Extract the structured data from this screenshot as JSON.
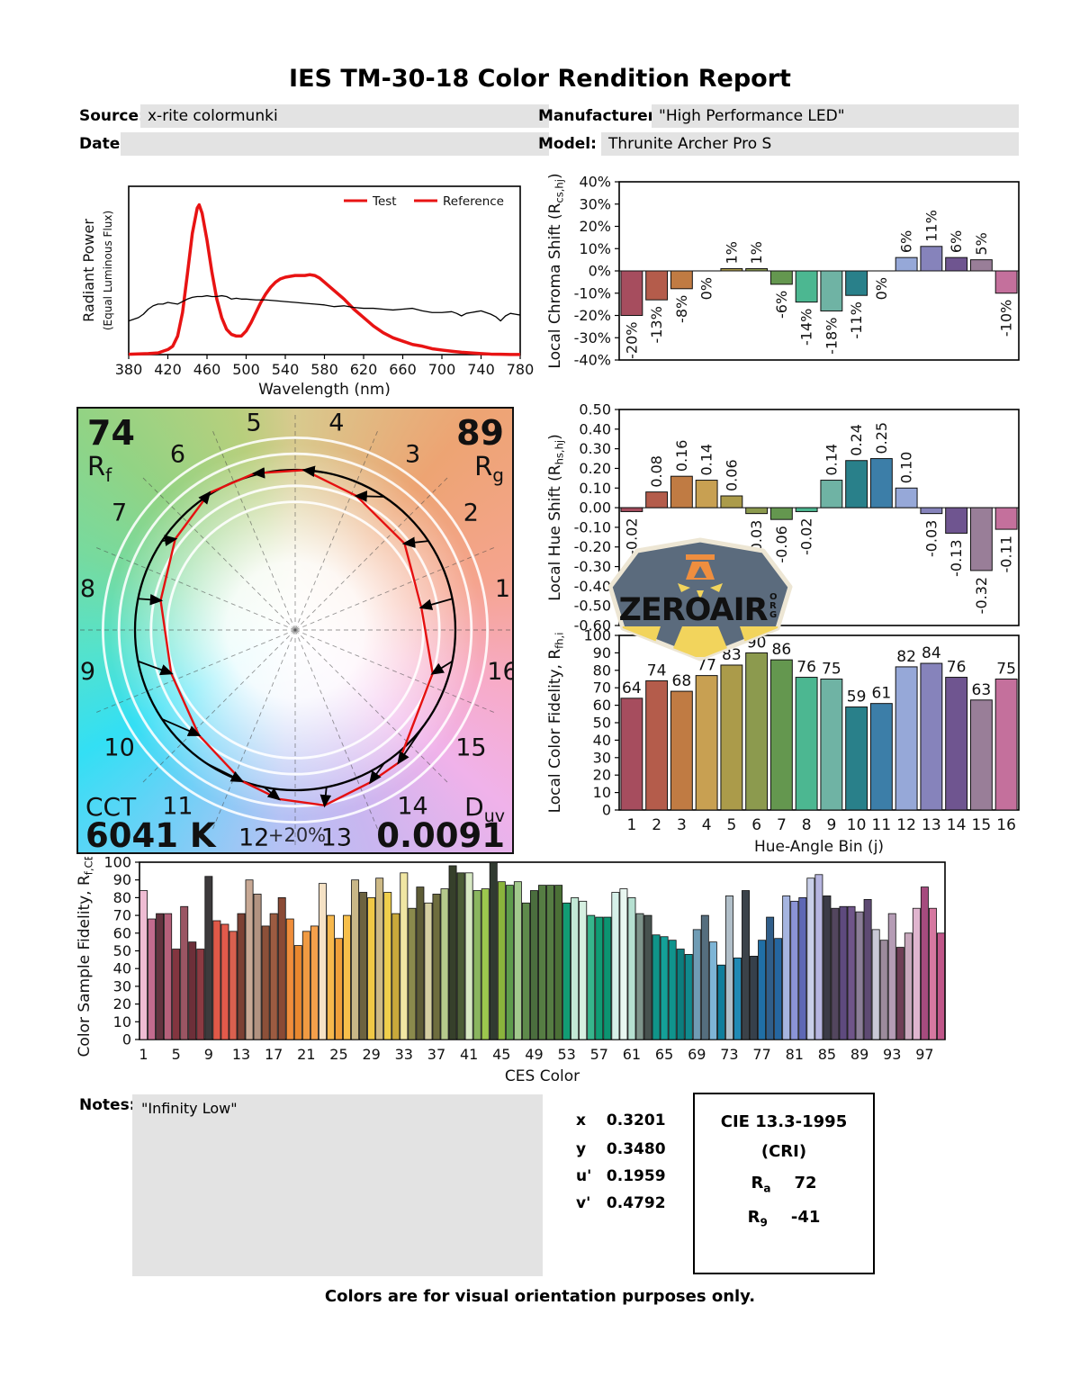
{
  "title": "IES TM-30-18 Color Rendition Report",
  "header": {
    "source_label": "Source:",
    "source_value": "x-rite colormunki",
    "date_label": "Date:",
    "date_value": "",
    "manufacturer_label": "Manufacturer:",
    "manufacturer_value": "\"High Performance LED\"",
    "model_label": "Model:",
    "model_value": "Thrunite Archer Pro S"
  },
  "bin_colors": [
    "#a64d5e",
    "#b45c4b",
    "#c07b43",
    "#c8a052",
    "#ab9b4a",
    "#8c9a4e",
    "#64974f",
    "#4cb791",
    "#6fb3a4",
    "#29808a",
    "#3c7ea8",
    "#96a8d8",
    "#8683bb",
    "#6f5590",
    "#997e98",
    "#c4709c"
  ],
  "chart_data": [
    {
      "id": "spd",
      "type": "line",
      "xlabel": "Wavelength (nm)",
      "ylabel_line1": "Radiant Power",
      "ylabel_line2": "(Equal Luminous Flux)",
      "x_ticks": [
        380,
        420,
        460,
        500,
        540,
        580,
        620,
        660,
        700,
        740,
        780
      ],
      "xlim": [
        380,
        780
      ],
      "legend": [
        {
          "label": "Test",
          "line_color": "#e81313",
          "text_color": "#e81313"
        },
        {
          "label": "Reference",
          "line_color": "#e81313",
          "text_color": "#000000"
        }
      ],
      "series": [
        {
          "name": "Test",
          "color": "#e81313",
          "width": 3.5,
          "points": [
            [
              380,
              0.002
            ],
            [
              400,
              0.006
            ],
            [
              410,
              0.01
            ],
            [
              420,
              0.03
            ],
            [
              425,
              0.05
            ],
            [
              430,
              0.11
            ],
            [
              435,
              0.25
            ],
            [
              440,
              0.48
            ],
            [
              445,
              0.72
            ],
            [
              450,
              0.87
            ],
            [
              452,
              0.89
            ],
            [
              455,
              0.84
            ],
            [
              460,
              0.68
            ],
            [
              465,
              0.49
            ],
            [
              470,
              0.33
            ],
            [
              475,
              0.22
            ],
            [
              480,
              0.15
            ],
            [
              485,
              0.12
            ],
            [
              490,
              0.11
            ],
            [
              495,
              0.11
            ],
            [
              500,
              0.14
            ],
            [
              505,
              0.19
            ],
            [
              510,
              0.25
            ],
            [
              515,
              0.31
            ],
            [
              520,
              0.36
            ],
            [
              525,
              0.4
            ],
            [
              530,
              0.43
            ],
            [
              535,
              0.45
            ],
            [
              540,
              0.46
            ],
            [
              550,
              0.47
            ],
            [
              560,
              0.47
            ],
            [
              565,
              0.475
            ],
            [
              570,
              0.47
            ],
            [
              575,
              0.455
            ],
            [
              580,
              0.43
            ],
            [
              590,
              0.38
            ],
            [
              600,
              0.33
            ],
            [
              610,
              0.27
            ],
            [
              620,
              0.22
            ],
            [
              630,
              0.17
            ],
            [
              640,
              0.13
            ],
            [
              650,
              0.1
            ],
            [
              660,
              0.08
            ],
            [
              670,
              0.06
            ],
            [
              680,
              0.05
            ],
            [
              690,
              0.035
            ],
            [
              700,
              0.027
            ],
            [
              710,
              0.02
            ],
            [
              720,
              0.014
            ],
            [
              730,
              0.01
            ],
            [
              740,
              0.006
            ],
            [
              750,
              0.003
            ],
            [
              760,
              0.002
            ],
            [
              770,
              0.001
            ],
            [
              780,
              0.001
            ]
          ]
        },
        {
          "name": "Reference",
          "color": "#000000",
          "width": 1.3,
          "points": [
            [
              380,
              0.2
            ],
            [
              385,
              0.21
            ],
            [
              390,
              0.22
            ],
            [
              395,
              0.24
            ],
            [
              400,
              0.27
            ],
            [
              405,
              0.29
            ],
            [
              410,
              0.3
            ],
            [
              415,
              0.3
            ],
            [
              420,
              0.31
            ],
            [
              425,
              0.305
            ],
            [
              430,
              0.3
            ],
            [
              435,
              0.315
            ],
            [
              440,
              0.33
            ],
            [
              445,
              0.34
            ],
            [
              450,
              0.345
            ],
            [
              455,
              0.345
            ],
            [
              460,
              0.35
            ],
            [
              465,
              0.345
            ],
            [
              470,
              0.345
            ],
            [
              475,
              0.35
            ],
            [
              480,
              0.345
            ],
            [
              485,
              0.33
            ],
            [
              490,
              0.335
            ],
            [
              495,
              0.33
            ],
            [
              500,
              0.33
            ],
            [
              510,
              0.325
            ],
            [
              520,
              0.325
            ],
            [
              530,
              0.32
            ],
            [
              540,
              0.315
            ],
            [
              550,
              0.31
            ],
            [
              560,
              0.305
            ],
            [
              570,
              0.3
            ],
            [
              580,
              0.295
            ],
            [
              590,
              0.285
            ],
            [
              600,
              0.29
            ],
            [
              610,
              0.28
            ],
            [
              620,
              0.275
            ],
            [
              630,
              0.275
            ],
            [
              640,
              0.27
            ],
            [
              650,
              0.265
            ],
            [
              660,
              0.27
            ],
            [
              670,
              0.275
            ],
            [
              680,
              0.26
            ],
            [
              690,
              0.25
            ],
            [
              700,
              0.25
            ],
            [
              710,
              0.255
            ],
            [
              715,
              0.245
            ],
            [
              720,
              0.23
            ],
            [
              725,
              0.245
            ],
            [
              730,
              0.25
            ],
            [
              735,
              0.255
            ],
            [
              740,
              0.26
            ],
            [
              745,
              0.25
            ],
            [
              750,
              0.24
            ],
            [
              755,
              0.225
            ],
            [
              760,
              0.2
            ],
            [
              765,
              0.23
            ],
            [
              770,
              0.245
            ],
            [
              775,
              0.24
            ],
            [
              780,
              0.235
            ]
          ]
        }
      ]
    },
    {
      "id": "chroma_shift",
      "type": "bar",
      "ylabel": {
        "pre": "Local Chroma Shift (R",
        "sub": "cs,hj",
        "post": ")"
      },
      "ylim": [
        -40,
        40
      ],
      "ytick_step": 10,
      "ytick_suffix": "%",
      "categories": [
        1,
        2,
        3,
        4,
        5,
        6,
        7,
        8,
        9,
        10,
        11,
        12,
        13,
        14,
        15,
        16
      ],
      "values": [
        -20,
        -13,
        -8,
        0,
        1,
        1,
        -6,
        -14,
        -18,
        -11,
        0,
        6,
        11,
        6,
        5,
        -10
      ],
      "labels": [
        "-20%",
        "-13%",
        "-8%",
        "0%",
        "1%",
        "1%",
        "-6%",
        "-14%",
        "-18%",
        "-11%",
        "0%",
        "6%",
        "11%",
        "6%",
        "5%",
        "-10%"
      ]
    },
    {
      "id": "hue_shift",
      "type": "bar",
      "ylabel": {
        "pre": "Local Hue Shift (R",
        "sub": "hs,hj",
        "post": ")"
      },
      "ylim": [
        -0.6,
        0.5
      ],
      "ytick_step": 0.1,
      "categories": [
        1,
        2,
        3,
        4,
        5,
        6,
        7,
        8,
        9,
        10,
        11,
        12,
        13,
        14,
        15,
        16
      ],
      "values": [
        -0.02,
        0.08,
        0.16,
        0.14,
        0.06,
        -0.03,
        -0.06,
        -0.02,
        0.14,
        0.24,
        0.25,
        0.1,
        -0.03,
        -0.13,
        -0.32,
        -0.11
      ],
      "labels": [
        "-0.02",
        "0.08",
        "0.16",
        "0.14",
        "0.06",
        "-0.03",
        "-0.06",
        "-0.02",
        "0.14",
        "0.24",
        "0.25",
        "0.10",
        "-0.03",
        "-0.13",
        "-0.32",
        "-0.11"
      ]
    },
    {
      "id": "local_fidelity",
      "type": "bar",
      "ylabel": {
        "pre": "Local Color Fidelity, R",
        "sub": "fh,i",
        "post": ""
      },
      "xlabel": "Hue-Angle Bin (j)",
      "ylim": [
        0,
        100
      ],
      "ytick_step": 10,
      "categories": [
        1,
        2,
        3,
        4,
        5,
        6,
        7,
        8,
        9,
        10,
        11,
        12,
        13,
        14,
        15,
        16
      ],
      "values": [
        64,
        74,
        68,
        77,
        83,
        90,
        86,
        76,
        75,
        59,
        61,
        82,
        84,
        76,
        63,
        75
      ]
    },
    {
      "id": "ces",
      "type": "bar",
      "ylabel": {
        "pre": "Color Sample Fidelity, R",
        "sub": "f,CESi",
        "post": ""
      },
      "xlabel": "CES Color",
      "ylim": [
        0,
        100
      ],
      "ytick_step": 10,
      "xtick_every": 4,
      "values": [
        84,
        68,
        71,
        71,
        51,
        75,
        55,
        51,
        92,
        67,
        65,
        61,
        71,
        90,
        82,
        64,
        71,
        80,
        68,
        53,
        61,
        64,
        88,
        70,
        57,
        70,
        90,
        83,
        80,
        91,
        83,
        71,
        94,
        74,
        86,
        77,
        82,
        85,
        98,
        94,
        94,
        84,
        85,
        100,
        89,
        87,
        89,
        77,
        84,
        87,
        87,
        87,
        77,
        80,
        78,
        70,
        69,
        69,
        83,
        85,
        80,
        71,
        70,
        59,
        58,
        56,
        51,
        48,
        62,
        70,
        55,
        42,
        81,
        46,
        84,
        47,
        56,
        69,
        57,
        81,
        78,
        80,
        91,
        93,
        81,
        74,
        75,
        75,
        72,
        79,
        62,
        56,
        71,
        52,
        60,
        74,
        86,
        74,
        60
      ],
      "colors": [
        "#efbcd3",
        "#c26b8e",
        "#63333f",
        "#b5607a",
        "#83353f",
        "#9a5563",
        "#6d2f39",
        "#8c3a42",
        "#3d3a3c",
        "#e05948",
        "#e25a4b",
        "#d9604f",
        "#7c4134",
        "#c8a995",
        "#b29381",
        "#8c5039",
        "#9c5b41",
        "#8a4a35",
        "#ef8d3b",
        "#e8872f",
        "#f09a42",
        "#f5a04b",
        "#f5e2c5",
        "#f7b84c",
        "#ef9f3a",
        "#f7bf4a",
        "#c9b787",
        "#6d6340",
        "#f0c846",
        "#cdb985",
        "#f0cf4c",
        "#c8a83b",
        "#f0e6a3",
        "#8a8a4c",
        "#5d5c36",
        "#d5cfa2",
        "#6e6d3e",
        "#b5c98c",
        "#36402b",
        "#4b5d36",
        "#d7e9c3",
        "#8ab55f",
        "#9cc74e",
        "#313b31",
        "#8ab43c",
        "#5e9c4c",
        "#a2c98c",
        "#5e8a4b",
        "#4b6e3e",
        "#567d43",
        "#567d43",
        "#4b7036",
        "#129c74",
        "#c2e8d6",
        "#d6f0e1",
        "#37b58c",
        "#109c74",
        "#0c9471",
        "#d6f0e9",
        "#e9f7f1",
        "#b6e0d1",
        "#7e948b",
        "#47524f",
        "#109489",
        "#14a098",
        "#10948d",
        "#0c7e7e",
        "#108a8d",
        "#6f9cb5",
        "#556e7e",
        "#7eb5d6",
        "#107e9c",
        "#b1bfc9",
        "#208ab5",
        "#3b4249",
        "#36404b",
        "#206fa6",
        "#305e8a",
        "#2566a0",
        "#a6b5e0",
        "#8b94d6",
        "#5e68b5",
        "#c9cfe9",
        "#b6b5e0",
        "#3b3b47",
        "#53465e",
        "#5e4a7e",
        "#6f5589",
        "#8b7e97",
        "#5e4a73",
        "#c9c9d6",
        "#9c8b9c",
        "#b59cb5",
        "#6f3e56",
        "#c9a8bd",
        "#e0b5cf",
        "#a64b7e",
        "#d678a0",
        "#c05689"
      ]
    }
  ],
  "cvg": {
    "rf_value": "74",
    "rf_label": "R",
    "rf_sub": "f",
    "rg_value": "89",
    "rg_label": "R",
    "rg_sub": "g",
    "cct_label": "CCT",
    "cct_value": "6041 K",
    "duv_label": "D",
    "duv_sub": "uv",
    "duv_value": "0.0091",
    "ring_label": "+20%",
    "bins": [
      "1",
      "2",
      "3",
      "4",
      "5",
      "6",
      "7",
      "8",
      "9",
      "10",
      "11",
      "12",
      "13",
      "14",
      "15",
      "16"
    ],
    "reference_color": "#000000",
    "test_color": "#e51010"
  },
  "watermark": {
    "name": "ZEROAIR",
    "tld": "ORG",
    "bg_color": "#5b6b7d",
    "border_color": "#ede6d4",
    "text_color": "#ef8e3f",
    "beam_color": "#f2d45c"
  },
  "notes": {
    "label": "Notes:",
    "value": "\"Infinity Low\""
  },
  "chromaticity": {
    "rows": [
      {
        "label": "x",
        "value": "0.3201"
      },
      {
        "label": "y",
        "value": "0.3480"
      },
      {
        "label": "u'",
        "value": "0.1959"
      },
      {
        "label": "v'",
        "value": "0.4792"
      }
    ]
  },
  "cri": {
    "title": "CIE 13.3-1995",
    "subtitle": "(CRI)",
    "ra_label": "R",
    "ra_sub": "a",
    "ra_value": "72",
    "r9_label": "R",
    "r9_sub": "9",
    "r9_value": "-41"
  },
  "footer": "Colors are for visual orientation purposes only."
}
